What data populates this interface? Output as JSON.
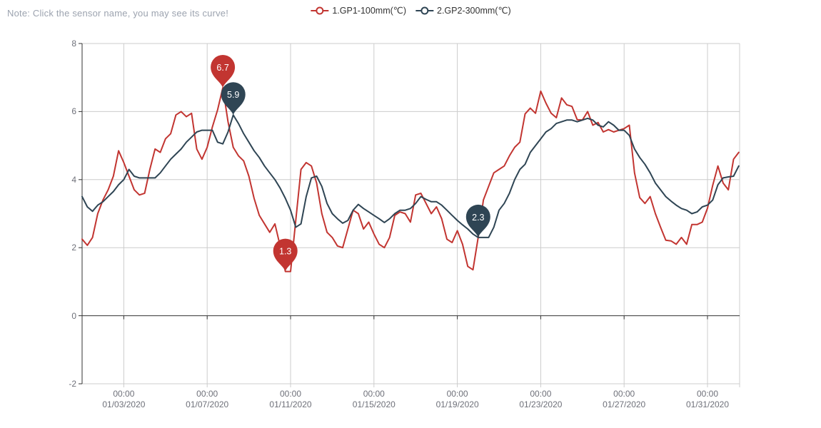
{
  "note": "Note: Click the sensor name, you may see its curve!",
  "legend": [
    {
      "label": "1.GP1-100mm(℃)",
      "color": "#c23531"
    },
    {
      "label": "2.GP2-300mm(℃)",
      "color": "#2f4554"
    }
  ],
  "colors": {
    "gp1": "#c23531",
    "gp2": "#2f4554",
    "axis": "#333333",
    "grid": "#cccccc",
    "tick_label": "#6e7079",
    "note": "#9ca3af",
    "marker_text": "#ffffff"
  },
  "chart_data": {
    "type": "line",
    "title": "",
    "xlabel": "",
    "ylabel": "",
    "ylim": [
      -2,
      8
    ],
    "y_ticks": [
      8,
      6,
      4,
      2,
      0,
      -2
    ],
    "x_start": "01/01/2020 00:00",
    "x_step_days": 0.25,
    "x_ticks": [
      {
        "time": "00:00",
        "date": "01/03/2020",
        "day": 2
      },
      {
        "time": "00:00",
        "date": "01/07/2020",
        "day": 6
      },
      {
        "time": "00:00",
        "date": "01/11/2020",
        "day": 10
      },
      {
        "time": "00:00",
        "date": "01/15/2020",
        "day": 14
      },
      {
        "time": "00:00",
        "date": "01/19/2020",
        "day": 18
      },
      {
        "time": "00:00",
        "date": "01/23/2020",
        "day": 22
      },
      {
        "time": "00:00",
        "date": "01/27/2020",
        "day": 26
      },
      {
        "time": "00:00",
        "date": "01/31/2020",
        "day": 30
      }
    ],
    "grid": true,
    "legend_position": "top-center",
    "series": [
      {
        "name": "1.GP1-100mm(℃)",
        "color": "#c23531",
        "values": [
          2.25,
          2.07,
          2.3,
          3.0,
          3.4,
          3.7,
          4.1,
          4.85,
          4.5,
          4.1,
          3.7,
          3.55,
          3.6,
          4.3,
          4.9,
          4.8,
          5.2,
          5.35,
          5.9,
          6.0,
          5.85,
          5.95,
          4.9,
          4.6,
          4.95,
          5.55,
          6.05,
          6.7,
          5.7,
          4.95,
          4.7,
          4.55,
          4.1,
          3.45,
          2.95,
          2.7,
          2.45,
          2.7,
          2.05,
          1.3,
          1.3,
          2.8,
          4.3,
          4.5,
          4.4,
          3.9,
          3.0,
          2.45,
          2.3,
          2.05,
          2.0,
          2.55,
          3.1,
          3.0,
          2.55,
          2.75,
          2.4,
          2.1,
          2.0,
          2.3,
          2.95,
          3.05,
          3.0,
          2.75,
          3.55,
          3.6,
          3.3,
          3.0,
          3.2,
          2.85,
          2.25,
          2.15,
          2.5,
          2.1,
          1.45,
          1.35,
          2.3,
          3.4,
          3.8,
          4.2,
          4.3,
          4.4,
          4.7,
          4.95,
          5.1,
          5.93,
          6.1,
          5.95,
          6.6,
          6.25,
          5.95,
          5.82,
          6.4,
          6.2,
          6.15,
          5.76,
          5.75,
          6.0,
          5.6,
          5.68,
          5.4,
          5.47,
          5.4,
          5.45,
          5.5,
          5.6,
          4.2,
          3.47,
          3.3,
          3.5,
          3.0,
          2.6,
          2.22,
          2.2,
          2.1,
          2.3,
          2.1,
          2.68,
          2.68,
          2.75,
          3.16,
          3.83,
          4.4,
          3.9,
          3.7,
          4.6,
          4.8
        ]
      },
      {
        "name": "2.GP2-300mm(℃)",
        "color": "#2f4554",
        "values": [
          3.5,
          3.2,
          3.07,
          3.25,
          3.35,
          3.5,
          3.65,
          3.85,
          4.0,
          4.3,
          4.1,
          4.05,
          4.05,
          4.05,
          4.05,
          4.2,
          4.4,
          4.6,
          4.75,
          4.9,
          5.1,
          5.25,
          5.4,
          5.45,
          5.45,
          5.45,
          5.1,
          5.05,
          5.4,
          5.9,
          5.65,
          5.35,
          5.1,
          4.85,
          4.65,
          4.4,
          4.2,
          4.0,
          3.75,
          3.45,
          3.1,
          2.6,
          2.7,
          3.5,
          4.05,
          4.1,
          3.8,
          3.3,
          3.0,
          2.85,
          2.72,
          2.8,
          3.1,
          3.27,
          3.15,
          3.05,
          2.95,
          2.85,
          2.74,
          2.85,
          3.0,
          3.1,
          3.1,
          3.15,
          3.3,
          3.5,
          3.42,
          3.35,
          3.35,
          3.25,
          3.1,
          2.95,
          2.8,
          2.67,
          2.55,
          2.4,
          2.3,
          2.3,
          2.3,
          2.6,
          3.1,
          3.3,
          3.6,
          4.0,
          4.3,
          4.45,
          4.8,
          5.0,
          5.2,
          5.4,
          5.5,
          5.65,
          5.7,
          5.75,
          5.75,
          5.7,
          5.75,
          5.8,
          5.75,
          5.6,
          5.55,
          5.7,
          5.6,
          5.45,
          5.45,
          5.3,
          4.9,
          4.65,
          4.45,
          4.2,
          3.9,
          3.7,
          3.5,
          3.37,
          3.25,
          3.15,
          3.1,
          3.0,
          3.05,
          3.2,
          3.25,
          3.4,
          3.85,
          4.05,
          4.08,
          4.1,
          4.4
        ]
      }
    ],
    "markers": [
      {
        "series": "1.GP1-100mm(℃)",
        "type": "max",
        "label": "6.7",
        "day": 6.75,
        "value": 6.7
      },
      {
        "series": "2.GP2-300mm(℃)",
        "type": "max",
        "label": "5.9",
        "day": 7.25,
        "value": 5.9
      },
      {
        "series": "1.GP1-100mm(℃)",
        "type": "min",
        "label": "1.3",
        "day": 9.75,
        "value": 1.3
      },
      {
        "series": "2.GP2-300mm(℃)",
        "type": "min",
        "label": "2.3",
        "day": 19.0,
        "value": 2.3
      }
    ]
  }
}
